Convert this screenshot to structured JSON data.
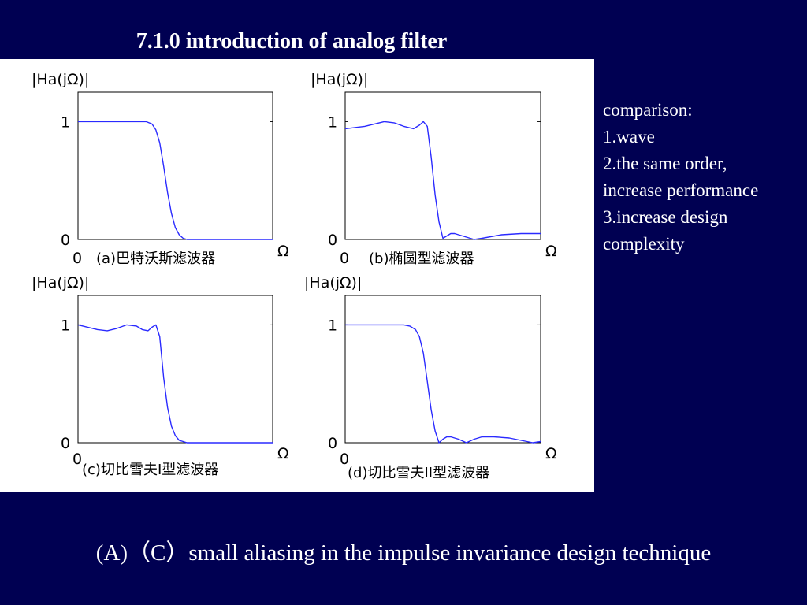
{
  "slide": {
    "title": "7.1.0 introduction of analog filter",
    "footer": "(A)（C）small aliasing in the impulse invariance design technique",
    "background_color": "#000052",
    "curve_color": "#2a2aff"
  },
  "comparison": {
    "lines": [
      "comparison:",
      "1.wave",
      "2.the same order,",
      "increase performance",
      "3.increase design",
      "complexity"
    ]
  },
  "chart_data": [
    {
      "type": "line",
      "title": "|Ha(jΩ)|",
      "caption": "(a)巴特沃斯滤波器",
      "xlabel": "Ω",
      "yticks": [
        "0",
        "1"
      ],
      "xticks": [
        "0"
      ],
      "ylim": [
        0,
        1.25
      ],
      "xlim": [
        0,
        1
      ],
      "x": [
        0,
        0.1,
        0.2,
        0.3,
        0.35,
        0.38,
        0.4,
        0.42,
        0.44,
        0.46,
        0.48,
        0.5,
        0.52,
        0.54,
        0.56,
        0.6,
        0.7,
        0.8,
        0.9,
        1.0
      ],
      "series": [
        {
          "values": [
            1,
            1,
            1,
            1,
            1,
            0.98,
            0.93,
            0.82,
            0.62,
            0.4,
            0.22,
            0.1,
            0.04,
            0.01,
            0,
            0,
            0,
            0,
            0,
            0
          ]
        }
      ]
    },
    {
      "type": "line",
      "title": "|Ha(jΩ)|",
      "caption": "(b)椭圆型滤波器",
      "xlabel": "Ω",
      "yticks": [
        "0",
        "1"
      ],
      "xticks": [
        "0"
      ],
      "ylim": [
        0,
        1.25
      ],
      "xlim": [
        0,
        1
      ],
      "x": [
        0,
        0.1,
        0.2,
        0.25,
        0.3,
        0.35,
        0.38,
        0.4,
        0.42,
        0.44,
        0.46,
        0.48,
        0.5,
        0.52,
        0.54,
        0.56,
        0.6,
        0.66,
        0.7,
        0.8,
        0.9,
        1.0
      ],
      "series": [
        {
          "values": [
            0.94,
            0.96,
            1.0,
            0.99,
            0.96,
            0.94,
            0.97,
            1.0,
            0.96,
            0.7,
            0.38,
            0.15,
            0.01,
            0.03,
            0.05,
            0.05,
            0.03,
            0.0,
            0.01,
            0.04,
            0.05,
            0.05
          ]
        }
      ]
    },
    {
      "type": "line",
      "title": "|Ha(jΩ)|",
      "caption": "(c)切比雪夫I型滤波器",
      "xlabel": "Ω",
      "yticks": [
        "0",
        "1"
      ],
      "xticks": [
        "0"
      ],
      "ylim": [
        0,
        1.25
      ],
      "xlim": [
        0,
        1
      ],
      "x": [
        0,
        0.05,
        0.1,
        0.15,
        0.2,
        0.25,
        0.3,
        0.33,
        0.36,
        0.38,
        0.4,
        0.42,
        0.44,
        0.46,
        0.48,
        0.5,
        0.52,
        0.54,
        0.56,
        0.6,
        0.7,
        0.8,
        0.9,
        1.0
      ],
      "series": [
        {
          "values": [
            1.0,
            0.98,
            0.96,
            0.95,
            0.97,
            1.0,
            0.99,
            0.96,
            0.95,
            0.98,
            1.0,
            0.9,
            0.55,
            0.3,
            0.14,
            0.06,
            0.02,
            0.01,
            0,
            0,
            0,
            0,
            0,
            0
          ]
        }
      ]
    },
    {
      "type": "line",
      "title": "|Ha(jΩ)|",
      "caption": "(d)切比雪夫II型滤波器",
      "xlabel": "Ω",
      "yticks": [
        "0",
        "1"
      ],
      "xticks": [
        "0"
      ],
      "ylim": [
        0,
        1.25
      ],
      "xlim": [
        0,
        1
      ],
      "x": [
        0,
        0.1,
        0.2,
        0.3,
        0.33,
        0.36,
        0.38,
        0.4,
        0.42,
        0.44,
        0.46,
        0.48,
        0.5,
        0.52,
        0.54,
        0.58,
        0.62,
        0.66,
        0.7,
        0.76,
        0.84,
        0.9,
        0.96,
        1.0
      ],
      "series": [
        {
          "values": [
            1,
            1,
            1,
            1,
            0.99,
            0.96,
            0.9,
            0.76,
            0.52,
            0.28,
            0.1,
            0.0,
            0.03,
            0.05,
            0.05,
            0.03,
            0.0,
            0.03,
            0.05,
            0.05,
            0.04,
            0.02,
            0.0,
            0.01
          ]
        }
      ]
    }
  ]
}
